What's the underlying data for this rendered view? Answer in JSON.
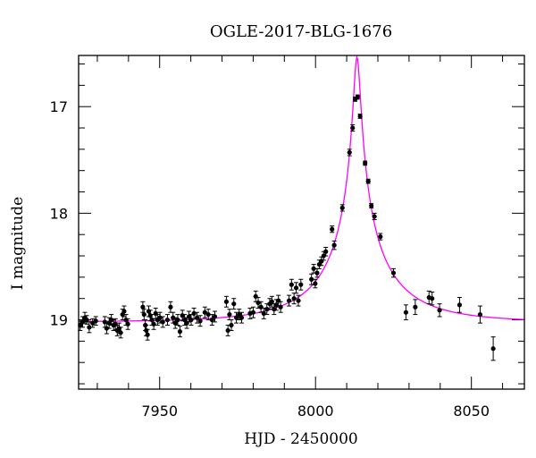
{
  "chart_data": {
    "type": "scatter",
    "title": "OGLE-2017-BLG-1676",
    "xlabel": "HJD - 2450000",
    "ylabel": "I magnitude",
    "xlim": [
      7924,
      8067
    ],
    "ylim": [
      19.65,
      16.52
    ],
    "y_inverted": true,
    "grid": false,
    "x_ticks": [
      7950,
      8000,
      8050
    ],
    "y_ticks": [
      17,
      18,
      19
    ],
    "x_minor_step": 10,
    "y_minor_step": 0.2,
    "colors": {
      "data": "#000000",
      "model": "#ff00ff"
    },
    "model": {
      "type": "point-lens",
      "t0": 8013.3,
      "u0": 0.038,
      "tE": 27,
      "baseline_mag": 19.02,
      "blend_fraction": 0.35
    },
    "series": [
      {
        "points": [
          {
            "x": 7924.5,
            "y": 19.05,
            "err": 0.05
          },
          {
            "x": 7925.3,
            "y": 19.02,
            "err": 0.05
          },
          {
            "x": 7926.0,
            "y": 18.98,
            "err": 0.05
          },
          {
            "x": 7926.6,
            "y": 19.0,
            "err": 0.04
          },
          {
            "x": 7927.4,
            "y": 19.07,
            "err": 0.05
          },
          {
            "x": 7928.5,
            "y": 19.03,
            "err": 0.04
          },
          {
            "x": 7929.5,
            "y": 19.01,
            "err": 0.04
          },
          {
            "x": 7932.4,
            "y": 19.02,
            "err": 0.05
          },
          {
            "x": 7933.0,
            "y": 19.08,
            "err": 0.05
          },
          {
            "x": 7933.8,
            "y": 19.03,
            "err": 0.05
          },
          {
            "x": 7934.5,
            "y": 19.0,
            "err": 0.05
          },
          {
            "x": 7935.2,
            "y": 19.05,
            "err": 0.05
          },
          {
            "x": 7935.8,
            "y": 19.04,
            "err": 0.05
          },
          {
            "x": 7936.4,
            "y": 19.1,
            "err": 0.05
          },
          {
            "x": 7937.0,
            "y": 19.08,
            "err": 0.05
          },
          {
            "x": 7937.5,
            "y": 19.12,
            "err": 0.05
          },
          {
            "x": 7938.1,
            "y": 18.95,
            "err": 0.05
          },
          {
            "x": 7938.6,
            "y": 18.92,
            "err": 0.05
          },
          {
            "x": 7939.2,
            "y": 19.0,
            "err": 0.05
          },
          {
            "x": 7939.8,
            "y": 19.04,
            "err": 0.05
          },
          {
            "x": 7944.6,
            "y": 18.88,
            "err": 0.05
          },
          {
            "x": 7945.0,
            "y": 18.95,
            "err": 0.05
          },
          {
            "x": 7945.4,
            "y": 19.05,
            "err": 0.05
          },
          {
            "x": 7945.7,
            "y": 19.1,
            "err": 0.05
          },
          {
            "x": 7946.1,
            "y": 19.14,
            "err": 0.05
          },
          {
            "x": 7946.5,
            "y": 18.92,
            "err": 0.05
          },
          {
            "x": 7947.0,
            "y": 18.96,
            "err": 0.05
          },
          {
            "x": 7947.5,
            "y": 19.0,
            "err": 0.05
          },
          {
            "x": 7948.1,
            "y": 19.04,
            "err": 0.05
          },
          {
            "x": 7948.7,
            "y": 18.94,
            "err": 0.05
          },
          {
            "x": 7949.3,
            "y": 19.0,
            "err": 0.05
          },
          {
            "x": 7950.1,
            "y": 18.98,
            "err": 0.05
          },
          {
            "x": 7951.0,
            "y": 19.02,
            "err": 0.05
          },
          {
            "x": 7952.5,
            "y": 19.0,
            "err": 0.05
          },
          {
            "x": 7953.5,
            "y": 18.88,
            "err": 0.05
          },
          {
            "x": 7954.3,
            "y": 18.98,
            "err": 0.05
          },
          {
            "x": 7955.0,
            "y": 19.03,
            "err": 0.05
          },
          {
            "x": 7955.8,
            "y": 19.0,
            "err": 0.05
          },
          {
            "x": 7956.5,
            "y": 19.11,
            "err": 0.05
          },
          {
            "x": 7957.3,
            "y": 18.96,
            "err": 0.05
          },
          {
            "x": 7958.0,
            "y": 19.0,
            "err": 0.05
          },
          {
            "x": 7958.7,
            "y": 19.03,
            "err": 0.05
          },
          {
            "x": 7959.4,
            "y": 18.97,
            "err": 0.05
          },
          {
            "x": 7960.1,
            "y": 19.0,
            "err": 0.05
          },
          {
            "x": 7961.0,
            "y": 18.94,
            "err": 0.05
          },
          {
            "x": 7962.0,
            "y": 18.98,
            "err": 0.05
          },
          {
            "x": 7963.0,
            "y": 19.01,
            "err": 0.05
          },
          {
            "x": 7964.5,
            "y": 18.93,
            "err": 0.05
          },
          {
            "x": 7965.6,
            "y": 18.95,
            "err": 0.05
          },
          {
            "x": 7966.8,
            "y": 19.0,
            "err": 0.05
          },
          {
            "x": 7967.7,
            "y": 18.97,
            "err": 0.05
          },
          {
            "x": 7971.4,
            "y": 18.83,
            "err": 0.05
          },
          {
            "x": 7971.9,
            "y": 19.1,
            "err": 0.05
          },
          {
            "x": 7972.4,
            "y": 18.95,
            "err": 0.05
          },
          {
            "x": 7973.0,
            "y": 19.05,
            "err": 0.05
          },
          {
            "x": 7973.8,
            "y": 18.85,
            "err": 0.05
          },
          {
            "x": 7974.6,
            "y": 18.98,
            "err": 0.05
          },
          {
            "x": 7975.5,
            "y": 18.95,
            "err": 0.05
          },
          {
            "x": 7976.3,
            "y": 18.98,
            "err": 0.05
          },
          {
            "x": 7979.0,
            "y": 18.94,
            "err": 0.05
          },
          {
            "x": 7980.0,
            "y": 18.93,
            "err": 0.05
          },
          {
            "x": 7980.8,
            "y": 18.78,
            "err": 0.05
          },
          {
            "x": 7981.6,
            "y": 18.84,
            "err": 0.05
          },
          {
            "x": 7982.5,
            "y": 18.88,
            "err": 0.05
          },
          {
            "x": 7983.4,
            "y": 18.94,
            "err": 0.05
          },
          {
            "x": 7984.4,
            "y": 18.9,
            "err": 0.05
          },
          {
            "x": 7985.3,
            "y": 18.85,
            "err": 0.05
          },
          {
            "x": 7986.0,
            "y": 18.83,
            "err": 0.05
          },
          {
            "x": 7986.7,
            "y": 18.9,
            "err": 0.05
          },
          {
            "x": 7987.4,
            "y": 18.86,
            "err": 0.05
          },
          {
            "x": 7988.1,
            "y": 18.82,
            "err": 0.05
          },
          {
            "x": 7988.8,
            "y": 18.88,
            "err": 0.05
          },
          {
            "x": 7991.5,
            "y": 18.82,
            "err": 0.05
          },
          {
            "x": 7992.3,
            "y": 18.67,
            "err": 0.05
          },
          {
            "x": 7993.1,
            "y": 18.8,
            "err": 0.05
          },
          {
            "x": 7993.8,
            "y": 18.7,
            "err": 0.05
          },
          {
            "x": 7994.5,
            "y": 18.82,
            "err": 0.05
          },
          {
            "x": 7995.3,
            "y": 18.67,
            "err": 0.05
          },
          {
            "x": 7998.7,
            "y": 18.62,
            "err": 0.05
          },
          {
            "x": 7999.4,
            "y": 18.52,
            "err": 0.04
          },
          {
            "x": 7999.9,
            "y": 18.66,
            "err": 0.04
          },
          {
            "x": 8000.5,
            "y": 18.56,
            "err": 0.04
          },
          {
            "x": 8001.2,
            "y": 18.48,
            "err": 0.04
          },
          {
            "x": 8001.9,
            "y": 18.45,
            "err": 0.04
          },
          {
            "x": 8002.6,
            "y": 18.4,
            "err": 0.04
          },
          {
            "x": 8003.3,
            "y": 18.36,
            "err": 0.04
          },
          {
            "x": 8005.3,
            "y": 18.15,
            "err": 0.03
          },
          {
            "x": 8006.0,
            "y": 18.3,
            "err": 0.04
          },
          {
            "x": 8008.6,
            "y": 17.95,
            "err": 0.03
          },
          {
            "x": 8010.9,
            "y": 17.43,
            "err": 0.03
          },
          {
            "x": 8011.9,
            "y": 17.2,
            "err": 0.03
          },
          {
            "x": 8012.7,
            "y": 16.93,
            "err": 0.02
          },
          {
            "x": 8013.5,
            "y": 16.91,
            "err": 0.02
          },
          {
            "x": 8014.3,
            "y": 17.09,
            "err": 0.02
          },
          {
            "x": 8015.9,
            "y": 17.53,
            "err": 0.02
          },
          {
            "x": 8016.9,
            "y": 17.7,
            "err": 0.02
          },
          {
            "x": 8017.9,
            "y": 17.93,
            "err": 0.02
          },
          {
            "x": 8018.9,
            "y": 18.03,
            "err": 0.03
          },
          {
            "x": 8020.8,
            "y": 18.22,
            "err": 0.03
          },
          {
            "x": 8025.0,
            "y": 18.56,
            "err": 0.04
          },
          {
            "x": 8029.0,
            "y": 18.93,
            "err": 0.07
          },
          {
            "x": 8032.0,
            "y": 18.88,
            "err": 0.07
          },
          {
            "x": 8036.4,
            "y": 18.79,
            "err": 0.06
          },
          {
            "x": 8037.4,
            "y": 18.8,
            "err": 0.06
          },
          {
            "x": 8039.8,
            "y": 18.91,
            "err": 0.06
          },
          {
            "x": 8046.2,
            "y": 18.86,
            "err": 0.07
          },
          {
            "x": 8052.8,
            "y": 18.95,
            "err": 0.08
          },
          {
            "x": 8057.0,
            "y": 19.27,
            "err": 0.11
          }
        ]
      }
    ]
  }
}
